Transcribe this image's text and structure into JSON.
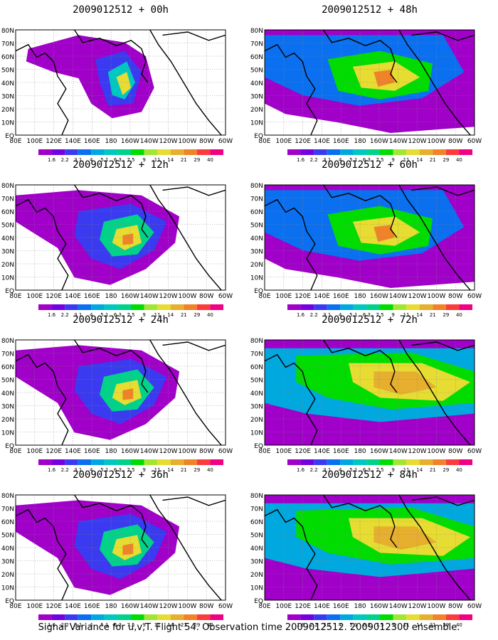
{
  "footer": "Signal Variance for u,v,T. Flight 54. Observation time 2009012512. 2009012300 ensemble.",
  "lat_labels": [
    "80N",
    "70N",
    "60N",
    "50N",
    "40N",
    "30N",
    "20N",
    "10N",
    "EQ"
  ],
  "lon_labels": [
    "80E",
    "100E",
    "120E",
    "140E",
    "160E",
    "180",
    "160W",
    "140W",
    "120W",
    "100W",
    "80W",
    "60W"
  ],
  "colorbar": {
    "labels": [
      "1.6",
      "2.2",
      "3.1",
      "4",
      "5.1",
      "6.3",
      "7.5",
      "9",
      "11",
      "14",
      "21",
      "29",
      "40"
    ],
    "colors": [
      "#a000c8",
      "#7200e0",
      "#3a3af0",
      "#0a70f0",
      "#00a8e0",
      "#00c8c0",
      "#00d28a",
      "#00dc00",
      "#a0e632",
      "#e6dc32",
      "#e6af2d",
      "#f08228",
      "#fa3c3c",
      "#f00082"
    ]
  },
  "panels": [
    {
      "title": "2009012512 + 00h",
      "level": 0
    },
    {
      "title": "2009012512 + 48h",
      "level": 2
    },
    {
      "title": "2009012512 + 12h",
      "level": 1
    },
    {
      "title": "2009012512 + 60h",
      "level": 2
    },
    {
      "title": "2009012512 + 24h",
      "level": 1
    },
    {
      "title": "2009012512 + 72h",
      "level": 3
    },
    {
      "title": "2009012512 + 36h",
      "level": 1
    },
    {
      "title": "2009012512 + 84h",
      "level": 3
    }
  ]
}
